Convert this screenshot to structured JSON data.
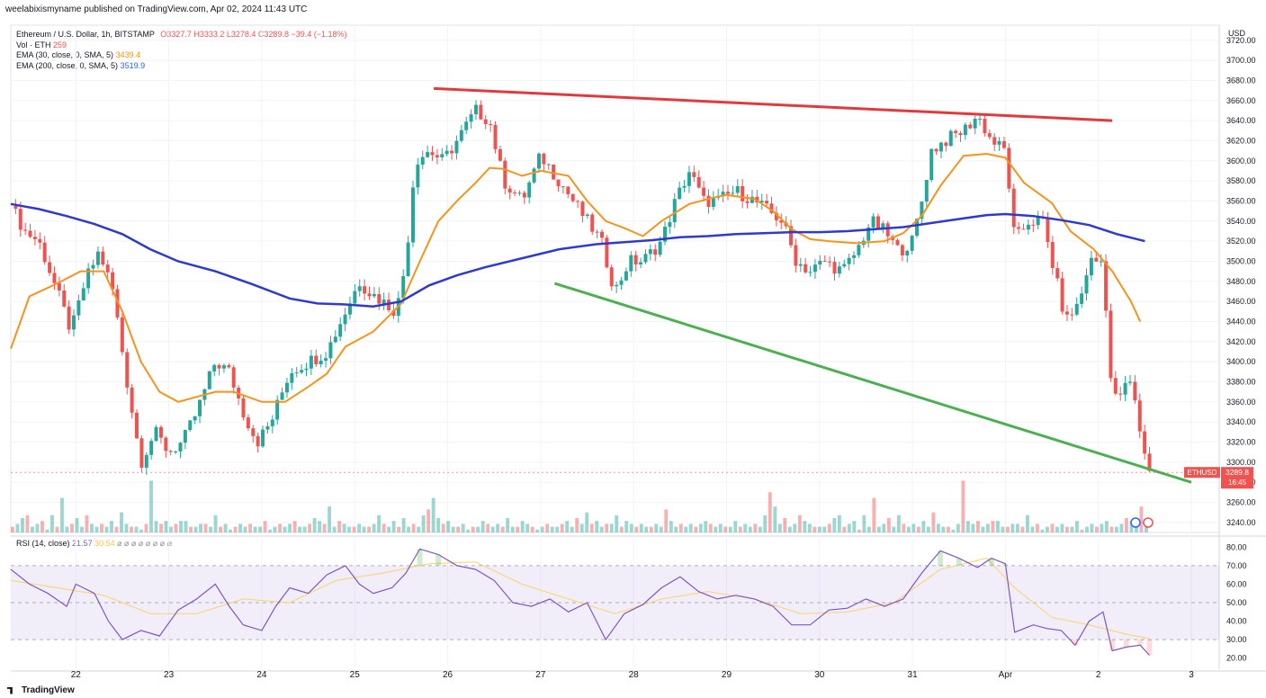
{
  "header": {
    "text": "weelabixismyname published on TradingView.com, Apr 02, 2024 11:43 UTC"
  },
  "legend": {
    "symbol": "Ethereum / U.S. Dollar, 1h, BITSTAMP",
    "o_label": "O",
    "o": "3327.7",
    "h_label": "H",
    "h": "3333.2",
    "l_label": "L",
    "l": "3278.4",
    "c_label": "C",
    "c": "3289.8",
    "chg": "−39.4 (−1.18%)",
    "vol_label": "Vol · ETH",
    "vol": "259",
    "ema30_label": "EMA (30, close, 0, SMA, 5)",
    "ema30": "3439.4",
    "ema200_label": "EMA (200, close, 0, SMA, 5)",
    "ema200": "3519.9"
  },
  "rsi_legend": {
    "label": "RSI (14, close)",
    "v1": "21.57",
    "v2": "30.54",
    "extra": "⌀ ⌀ ⌀ ⌀ ⌀ ⌀ ⌀ ⌀"
  },
  "footer": {
    "brand": "TradingView"
  },
  "price_badge": {
    "symbol": "ETHUSD",
    "price": "3289.8",
    "countdown": "16:45"
  },
  "colors": {
    "up": "#26a69a",
    "down": "#ef5350",
    "ema30": "#f7931a",
    "ema200": "#2e3acb",
    "resistance": "#e0393e",
    "support": "#4caf50",
    "rsi": "#7e57c2",
    "rsi_ma": "#f7d87c"
  },
  "chart_data": {
    "type": "candlestick",
    "symbol": "ETHUSD",
    "interval": "1h",
    "currency": "USD",
    "y_axis_label": "USD",
    "ylim": [
      3230,
      3735
    ],
    "y_ticks": [
      3240,
      3260,
      3280,
      3300,
      3320,
      3340,
      3360,
      3380,
      3400,
      3420,
      3440,
      3460,
      3480,
      3500,
      3520,
      3540,
      3560,
      3580,
      3600,
      3620,
      3640,
      3660,
      3680,
      3700,
      3720
    ],
    "y_tick_labels": [
      "3240.00",
      "3260.00",
      "3280.00",
      "3300.00",
      "3320.00",
      "3340.00",
      "3360.00",
      "3380.00",
      "3400.00",
      "3420.00",
      "3440.00",
      "3460.00",
      "3480.00",
      "3500.00",
      "3520.00",
      "3540.00",
      "3560.00",
      "3580.00",
      "3600.00",
      "3620.00",
      "3640.00",
      "3660.00",
      "3680.00",
      "3700.00",
      "3720.00"
    ],
    "x_ticks": [
      "22",
      "23",
      "24",
      "25",
      "26",
      "27",
      "28",
      "29",
      "30",
      "31",
      "Apr",
      "2",
      "3"
    ],
    "x_tick_day": [
      1,
      2,
      3,
      4,
      5,
      6,
      7,
      8,
      9,
      10,
      11,
      12,
      13
    ],
    "x_range_day": [
      0.3,
      13.3
    ],
    "close_path": [
      [
        0.3,
        3555
      ],
      [
        0.45,
        3530
      ],
      [
        0.6,
        3520
      ],
      [
        0.8,
        3470
      ],
      [
        0.95,
        3430
      ],
      [
        1.1,
        3480
      ],
      [
        1.25,
        3510
      ],
      [
        1.4,
        3470
      ],
      [
        1.55,
        3380
      ],
      [
        1.7,
        3300
      ],
      [
        1.85,
        3330
      ],
      [
        2.0,
        3310
      ],
      [
        2.15,
        3320
      ],
      [
        2.3,
        3350
      ],
      [
        2.5,
        3400
      ],
      [
        2.65,
        3390
      ],
      [
        2.8,
        3350
      ],
      [
        2.95,
        3320
      ],
      [
        3.1,
        3340
      ],
      [
        3.3,
        3390
      ],
      [
        3.5,
        3400
      ],
      [
        3.7,
        3410
      ],
      [
        3.9,
        3450
      ],
      [
        4.05,
        3480
      ],
      [
        4.15,
        3470
      ],
      [
        4.3,
        3460
      ],
      [
        4.45,
        3450
      ],
      [
        4.55,
        3500
      ],
      [
        4.65,
        3600
      ],
      [
        4.8,
        3610
      ],
      [
        4.95,
        3600
      ],
      [
        5.1,
        3620
      ],
      [
        5.3,
        3650
      ],
      [
        5.45,
        3640
      ],
      [
        5.6,
        3580
      ],
      [
        5.8,
        3560
      ],
      [
        6.0,
        3605
      ],
      [
        6.2,
        3580
      ],
      [
        6.35,
        3560
      ],
      [
        6.5,
        3540
      ],
      [
        6.65,
        3520
      ],
      [
        6.8,
        3470
      ],
      [
        6.95,
        3500
      ],
      [
        7.1,
        3500
      ],
      [
        7.3,
        3520
      ],
      [
        7.45,
        3560
      ],
      [
        7.6,
        3590
      ],
      [
        7.75,
        3560
      ],
      [
        7.9,
        3560
      ],
      [
        8.1,
        3570
      ],
      [
        8.3,
        3560
      ],
      [
        8.45,
        3550
      ],
      [
        8.6,
        3540
      ],
      [
        8.75,
        3500
      ],
      [
        8.9,
        3490
      ],
      [
        9.05,
        3500
      ],
      [
        9.25,
        3490
      ],
      [
        9.4,
        3510
      ],
      [
        9.55,
        3540
      ],
      [
        9.7,
        3530
      ],
      [
        9.85,
        3510
      ],
      [
        10.0,
        3520
      ],
      [
        10.1,
        3560
      ],
      [
        10.2,
        3610
      ],
      [
        10.35,
        3620
      ],
      [
        10.55,
        3630
      ],
      [
        10.7,
        3645
      ],
      [
        10.85,
        3620
      ],
      [
        11.0,
        3610
      ],
      [
        11.1,
        3520
      ],
      [
        11.25,
        3540
      ],
      [
        11.4,
        3540
      ],
      [
        11.55,
        3480
      ],
      [
        11.65,
        3440
      ],
      [
        11.8,
        3460
      ],
      [
        11.9,
        3500
      ],
      [
        12.05,
        3500
      ],
      [
        12.15,
        3360
      ],
      [
        12.25,
        3370
      ],
      [
        12.35,
        3380
      ],
      [
        12.45,
        3330
      ],
      [
        12.55,
        3289.8
      ]
    ],
    "ema30": [
      [
        0.3,
        3413
      ],
      [
        0.5,
        3465
      ],
      [
        0.8,
        3478
      ],
      [
        1.05,
        3490
      ],
      [
        1.3,
        3490
      ],
      [
        1.5,
        3450
      ],
      [
        1.7,
        3400
      ],
      [
        1.9,
        3370
      ],
      [
        2.1,
        3360
      ],
      [
        2.3,
        3365
      ],
      [
        2.5,
        3370
      ],
      [
        2.7,
        3370
      ],
      [
        3.0,
        3360
      ],
      [
        3.25,
        3360
      ],
      [
        3.5,
        3375
      ],
      [
        3.7,
        3388
      ],
      [
        3.9,
        3415
      ],
      [
        4.2,
        3430
      ],
      [
        4.5,
        3458
      ],
      [
        4.7,
        3500
      ],
      [
        4.9,
        3540
      ],
      [
        5.1,
        3560
      ],
      [
        5.3,
        3578
      ],
      [
        5.45,
        3593
      ],
      [
        5.6,
        3592
      ],
      [
        5.8,
        3585
      ],
      [
        6.0,
        3590
      ],
      [
        6.3,
        3585
      ],
      [
        6.5,
        3560
      ],
      [
        6.7,
        3540
      ],
      [
        6.9,
        3533
      ],
      [
        7.1,
        3525
      ],
      [
        7.3,
        3540
      ],
      [
        7.6,
        3557
      ],
      [
        7.8,
        3562
      ],
      [
        8.0,
        3566
      ],
      [
        8.3,
        3562
      ],
      [
        8.5,
        3550
      ],
      [
        8.7,
        3532
      ],
      [
        8.9,
        3522
      ],
      [
        9.1,
        3520
      ],
      [
        9.4,
        3518
      ],
      [
        9.7,
        3520
      ],
      [
        9.9,
        3528
      ],
      [
        10.1,
        3545
      ],
      [
        10.3,
        3575
      ],
      [
        10.55,
        3605
      ],
      [
        10.8,
        3607
      ],
      [
        11.0,
        3603
      ],
      [
        11.2,
        3578
      ],
      [
        11.5,
        3558
      ],
      [
        11.7,
        3530
      ],
      [
        11.95,
        3512
      ],
      [
        12.15,
        3490
      ],
      [
        12.35,
        3460
      ],
      [
        12.45,
        3440
      ]
    ],
    "ema200": [
      [
        0.3,
        3557
      ],
      [
        0.6,
        3552
      ],
      [
        0.9,
        3545
      ],
      [
        1.2,
        3537
      ],
      [
        1.5,
        3527
      ],
      [
        1.8,
        3512
      ],
      [
        2.1,
        3500
      ],
      [
        2.5,
        3490
      ],
      [
        2.9,
        3477
      ],
      [
        3.3,
        3463
      ],
      [
        3.6,
        3458
      ],
      [
        3.9,
        3457
      ],
      [
        4.2,
        3455
      ],
      [
        4.5,
        3460
      ],
      [
        4.8,
        3476
      ],
      [
        5.1,
        3486
      ],
      [
        5.4,
        3494
      ],
      [
        5.8,
        3503
      ],
      [
        6.2,
        3512
      ],
      [
        6.6,
        3517
      ],
      [
        6.9,
        3519
      ],
      [
        7.2,
        3521
      ],
      [
        7.5,
        3524
      ],
      [
        7.8,
        3525
      ],
      [
        8.1,
        3527
      ],
      [
        8.4,
        3528
      ],
      [
        8.7,
        3529
      ],
      [
        9.0,
        3529
      ],
      [
        9.3,
        3530
      ],
      [
        9.6,
        3532
      ],
      [
        9.9,
        3534
      ],
      [
        10.2,
        3538
      ],
      [
        10.5,
        3542
      ],
      [
        10.8,
        3546
      ],
      [
        11.0,
        3547
      ],
      [
        11.3,
        3545
      ],
      [
        11.6,
        3541
      ],
      [
        11.9,
        3536
      ],
      [
        12.2,
        3527
      ],
      [
        12.5,
        3520
      ]
    ],
    "trendlines": [
      {
        "name": "resistance",
        "from": [
          4.85,
          3672
        ],
        "to": [
          12.15,
          3640
        ]
      },
      {
        "name": "support",
        "from": [
          6.15,
          3478
        ],
        "to": [
          13.0,
          3280
        ]
      }
    ],
    "rsi": {
      "ylim": [
        15,
        85
      ],
      "ticks": [
        20,
        30,
        40,
        50,
        60,
        70,
        80
      ],
      "tick_labels": [
        "20.00",
        "30.00",
        "40.00",
        "50.00",
        "60.00",
        "70.00",
        "80.00"
      ],
      "band": [
        30,
        70
      ],
      "mid": 50,
      "values": [
        [
          0.3,
          68
        ],
        [
          0.5,
          60
        ],
        [
          0.7,
          55
        ],
        [
          0.9,
          48
        ],
        [
          1.0,
          60
        ],
        [
          1.2,
          55
        ],
        [
          1.35,
          40
        ],
        [
          1.5,
          30
        ],
        [
          1.7,
          35
        ],
        [
          1.9,
          32
        ],
        [
          2.1,
          46
        ],
        [
          2.3,
          52
        ],
        [
          2.5,
          60
        ],
        [
          2.65,
          48
        ],
        [
          2.8,
          38
        ],
        [
          3.0,
          35
        ],
        [
          3.15,
          48
        ],
        [
          3.3,
          58
        ],
        [
          3.5,
          55
        ],
        [
          3.7,
          65
        ],
        [
          3.9,
          70
        ],
        [
          4.05,
          60
        ],
        [
          4.2,
          55
        ],
        [
          4.4,
          58
        ],
        [
          4.55,
          66
        ],
        [
          4.7,
          79
        ],
        [
          4.9,
          76
        ],
        [
          5.1,
          70
        ],
        [
          5.3,
          68
        ],
        [
          5.5,
          62
        ],
        [
          5.7,
          50
        ],
        [
          5.9,
          48
        ],
        [
          6.1,
          52
        ],
        [
          6.3,
          45
        ],
        [
          6.5,
          50
        ],
        [
          6.7,
          30
        ],
        [
          6.9,
          44
        ],
        [
          7.1,
          49
        ],
        [
          7.3,
          58
        ],
        [
          7.5,
          64
        ],
        [
          7.7,
          56
        ],
        [
          7.9,
          52
        ],
        [
          8.1,
          54
        ],
        [
          8.3,
          52
        ],
        [
          8.5,
          48
        ],
        [
          8.7,
          38
        ],
        [
          8.9,
          38
        ],
        [
          9.1,
          46
        ],
        [
          9.3,
          47
        ],
        [
          9.5,
          52
        ],
        [
          9.7,
          48
        ],
        [
          9.9,
          52
        ],
        [
          10.1,
          66
        ],
        [
          10.3,
          78
        ],
        [
          10.5,
          74
        ],
        [
          10.7,
          69
        ],
        [
          10.85,
          74
        ],
        [
          11.0,
          71
        ],
        [
          11.1,
          34
        ],
        [
          11.3,
          38
        ],
        [
          11.45,
          36
        ],
        [
          11.6,
          35
        ],
        [
          11.75,
          27
        ],
        [
          11.9,
          40
        ],
        [
          12.05,
          45
        ],
        [
          12.15,
          24
        ],
        [
          12.3,
          26
        ],
        [
          12.45,
          27
        ],
        [
          12.55,
          21.57
        ]
      ],
      "ma": [
        [
          0.3,
          62
        ],
        [
          0.8,
          58
        ],
        [
          1.3,
          54
        ],
        [
          1.8,
          44
        ],
        [
          2.3,
          44
        ],
        [
          2.8,
          52
        ],
        [
          3.3,
          50
        ],
        [
          3.8,
          62
        ],
        [
          4.3,
          66
        ],
        [
          4.8,
          71
        ],
        [
          5.3,
          72
        ],
        [
          5.8,
          60
        ],
        [
          6.3,
          52
        ],
        [
          6.8,
          44
        ],
        [
          7.3,
          52
        ],
        [
          7.8,
          56
        ],
        [
          8.3,
          52
        ],
        [
          8.8,
          44
        ],
        [
          9.3,
          45
        ],
        [
          9.8,
          50
        ],
        [
          10.3,
          68
        ],
        [
          10.8,
          74
        ],
        [
          11.1,
          58
        ],
        [
          11.5,
          42
        ],
        [
          11.9,
          38
        ],
        [
          12.3,
          33
        ],
        [
          12.55,
          30.54
        ]
      ]
    },
    "volume_pattern": [
      2,
      3,
      5,
      6,
      2,
      3,
      4,
      1,
      6,
      2,
      12,
      2,
      3,
      5,
      2,
      6,
      3,
      2,
      3,
      2,
      4,
      2,
      7,
      3,
      2,
      2,
      1,
      3,
      18,
      4,
      3,
      4,
      2,
      3,
      4,
      4,
      2,
      2,
      3,
      3,
      2,
      6,
      2,
      3,
      1,
      2,
      3,
      2,
      3,
      2,
      2,
      4,
      1,
      2,
      3,
      2,
      3,
      4,
      2,
      2,
      3,
      5,
      4,
      3,
      9,
      2,
      4,
      3,
      2,
      2,
      3,
      2,
      2,
      3,
      6,
      3,
      2,
      4,
      2,
      5,
      2,
      3,
      2,
      6,
      8,
      12,
      5,
      3,
      4,
      2,
      2,
      3,
      1,
      2,
      2,
      4,
      3,
      2,
      3,
      2,
      5,
      2,
      2,
      4,
      3,
      2,
      1,
      2,
      3,
      2,
      2,
      3,
      4,
      2,
      5,
      3,
      7,
      3,
      4,
      2,
      3,
      3,
      6,
      2,
      4,
      3,
      2,
      3,
      2,
      2,
      3,
      2,
      8,
      4,
      2,
      3,
      2,
      3,
      2,
      3,
      4,
      3,
      2,
      3,
      2,
      2,
      4,
      2,
      3,
      2,
      3,
      2,
      6,
      14,
      9,
      3,
      5,
      2,
      3,
      6,
      4,
      3,
      2,
      2
    ]
  }
}
